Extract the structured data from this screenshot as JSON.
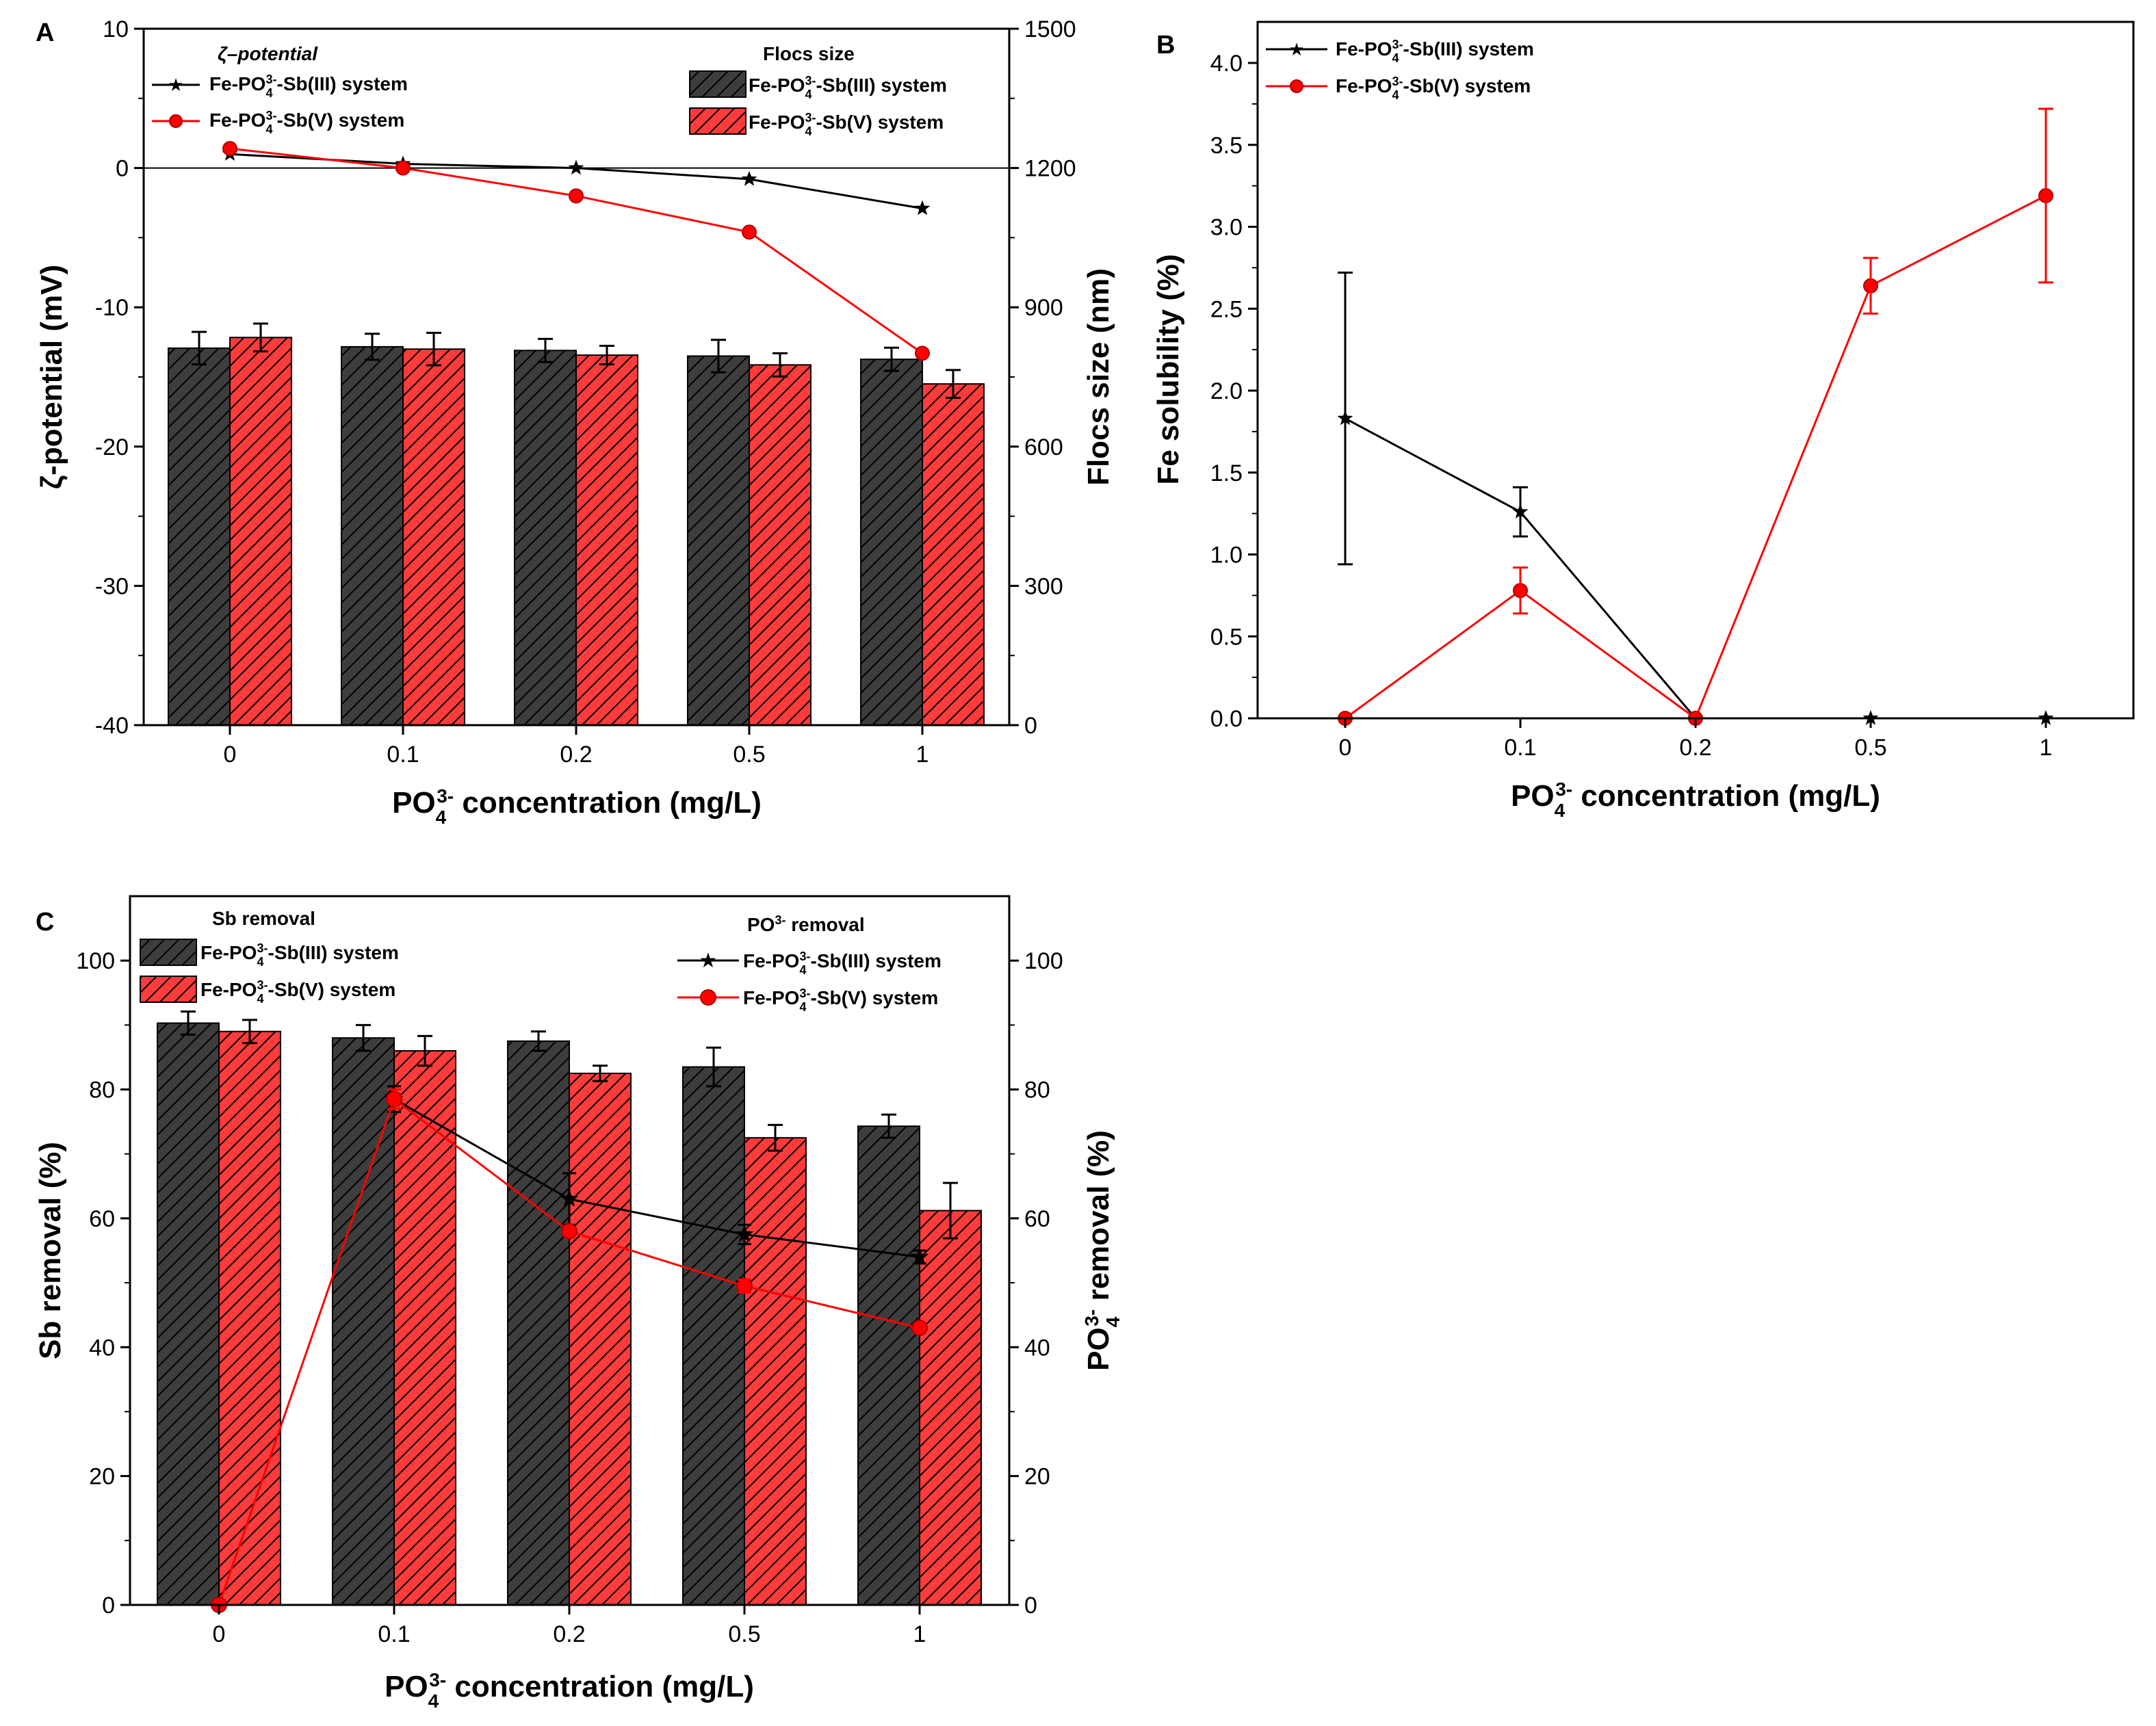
{
  "colors": {
    "dark_bar": "#3d3d3d",
    "red": "#ff0000",
    "black": "#000000",
    "hatch": "#000000"
  },
  "panels": [
    {
      "letter": "A",
      "xlabel_pre": "PO",
      "xlabel_sub": "4",
      "xlabel_sup": "3-",
      "xlabel_post": " concentration (mg/L)",
      "ylabel_left": "ζ-potential (mV)",
      "ylabel_right": "Flocs size (nm)",
      "legend_left_title": "ζ–potential",
      "legend_right_title": "Flocs size",
      "series_label_iii": {
        "pre": "Fe-PO",
        "sub": "4",
        "sup": "3-",
        "post": "-Sb(III) system"
      },
      "series_label_v": {
        "pre": "Fe-PO",
        "sub": "4",
        "sup": "3-",
        "post": "-Sb(V) system"
      },
      "categories": [
        "0",
        "0.1",
        "0.2",
        "0.5",
        "1"
      ],
      "yleft_ticks": [
        "10",
        "0",
        "-10",
        "-20",
        "-30",
        "-40"
      ],
      "yright_ticks": [
        "1500",
        "1200",
        "900",
        "600",
        "300",
        "0"
      ]
    },
    {
      "letter": "B",
      "xlabel_pre": "PO",
      "xlabel_sub": "4",
      "xlabel_sup": "3-",
      "xlabel_post": " concentration (mg/L)",
      "ylabel_left": "Fe solubility (%)",
      "series_label_iii": {
        "pre": "Fe-PO",
        "sub": "4",
        "sup": "3-",
        "post": "-Sb(III) system"
      },
      "series_label_v": {
        "pre": "Fe-PO",
        "sub": "4",
        "sup": "3-",
        "post": "-Sb(V) system"
      },
      "categories": [
        "0",
        "0.1",
        "0.2",
        "0.5",
        "1"
      ],
      "yleft_ticks": [
        "4.0",
        "3.5",
        "3.0",
        "2.5",
        "2.0",
        "1.5",
        "1.0",
        "0.5",
        "0.0"
      ]
    },
    {
      "letter": "C",
      "xlabel_pre": "PO",
      "xlabel_sub": "4",
      "xlabel_sup": "3-",
      "xlabel_post": " concentration (mg/L)",
      "ylabel_left": "Sb removal (%)",
      "ylabel_right_pre": "PO",
      "ylabel_right_sub": "4",
      "ylabel_right_sup": "3-",
      "ylabel_right_post": " removal (%)",
      "legend_left_title": "Sb removal",
      "legend_right_title": {
        "pre": "PO",
        "sub": "4",
        "sup": "3-",
        "post": " removal"
      },
      "series_label_iii": {
        "pre": "Fe-PO",
        "sub": "4",
        "sup": "3-",
        "post": "-Sb(III) system"
      },
      "series_label_v": {
        "pre": "Fe-PO",
        "sub": "4",
        "sup": "3-",
        "post": "-Sb(V) system"
      },
      "categories": [
        "0",
        "0.1",
        "0.2",
        "0.5",
        "1"
      ],
      "yleft_ticks": [
        "100",
        "80",
        "60",
        "40",
        "20",
        "0"
      ],
      "yright_ticks": [
        "100",
        "80",
        "60",
        "40",
        "20",
        "0"
      ]
    }
  ],
  "chart_data": [
    {
      "panel": "A",
      "type": "bar+line",
      "categories": [
        "0",
        "0.1",
        "0.2",
        "0.5",
        "1"
      ],
      "bars": {
        "axis": "right",
        "ylim": [
          0,
          1500
        ],
        "title": "Flocs size",
        "series": [
          {
            "name": "Fe-PO43--Sb(III) system",
            "values": [
              812,
              815,
              807,
              795,
              788
            ],
            "errors": [
              35,
              28,
              25,
              35,
              25
            ]
          },
          {
            "name": "Fe-PO43--Sb(V) system",
            "values": [
              835,
              810,
              797,
              776,
              735
            ],
            "errors": [
              30,
              35,
              20,
              25,
              30
            ]
          }
        ]
      },
      "lines": {
        "axis": "left",
        "ylim": [
          -40,
          10
        ],
        "title": "ζ–potential",
        "series": [
          {
            "name": "Fe-PO43--Sb(III) system",
            "marker": "star",
            "values": [
              1.0,
              0.3,
              0.0,
              -0.8,
              -2.9
            ]
          },
          {
            "name": "Fe-PO43--Sb(V) system",
            "marker": "circle",
            "values": [
              1.4,
              0.0,
              -2.0,
              -4.6,
              -13.3
            ]
          }
        ]
      }
    },
    {
      "panel": "B",
      "type": "line",
      "categories": [
        "0",
        "0.1",
        "0.2",
        "0.5",
        "1"
      ],
      "ylim": [
        0,
        4.0
      ],
      "series": [
        {
          "name": "Fe-PO43--Sb(III) system",
          "marker": "star",
          "values": [
            1.83,
            1.26,
            0.0,
            0.0,
            0.0
          ],
          "errors": [
            0.89,
            0.15,
            0,
            0,
            0
          ]
        },
        {
          "name": "Fe-PO43--Sb(V) system",
          "marker": "circle",
          "values": [
            0.0,
            0.78,
            0.0,
            2.64,
            3.19
          ],
          "errors": [
            0,
            0.14,
            0,
            0.17,
            0.53
          ]
        }
      ]
    },
    {
      "panel": "C",
      "type": "bar+line",
      "categories": [
        "0",
        "0.1",
        "0.2",
        "0.5",
        "1"
      ],
      "bars": {
        "axis": "left",
        "ylim": [
          0,
          110
        ],
        "title": "Sb removal",
        "series": [
          {
            "name": "Fe-PO43--Sb(III) system",
            "values": [
              90.3,
              88.0,
              87.5,
              83.5,
              74.3
            ],
            "errors": [
              1.8,
              2.0,
              1.5,
              3.0,
              1.8
            ]
          },
          {
            "name": "Fe-PO43--Sb(V) system",
            "values": [
              89.0,
              86.0,
              82.5,
              72.5,
              61.2
            ],
            "errors": [
              1.8,
              2.3,
              1.2,
              2.0,
              4.3
            ]
          }
        ]
      },
      "lines": {
        "axis": "right",
        "ylim": [
          0,
          110
        ],
        "title": "PO43- removal",
        "series": [
          {
            "name": "Fe-PO43--Sb(III) system",
            "marker": "star",
            "values": [
              null,
              78.5,
              63.0,
              57.5,
              54.0
            ],
            "errors": [
              0,
              2.0,
              4.0,
              1.5,
              1.0
            ]
          },
          {
            "name": "Fe-PO43--Sb(V) system",
            "marker": "circle",
            "values": [
              0.0,
              78.5,
              58.0,
              49.5,
              43.0
            ],
            "errors": [
              0,
              1.5,
              0,
              1.0,
              0
            ]
          }
        ]
      }
    }
  ]
}
